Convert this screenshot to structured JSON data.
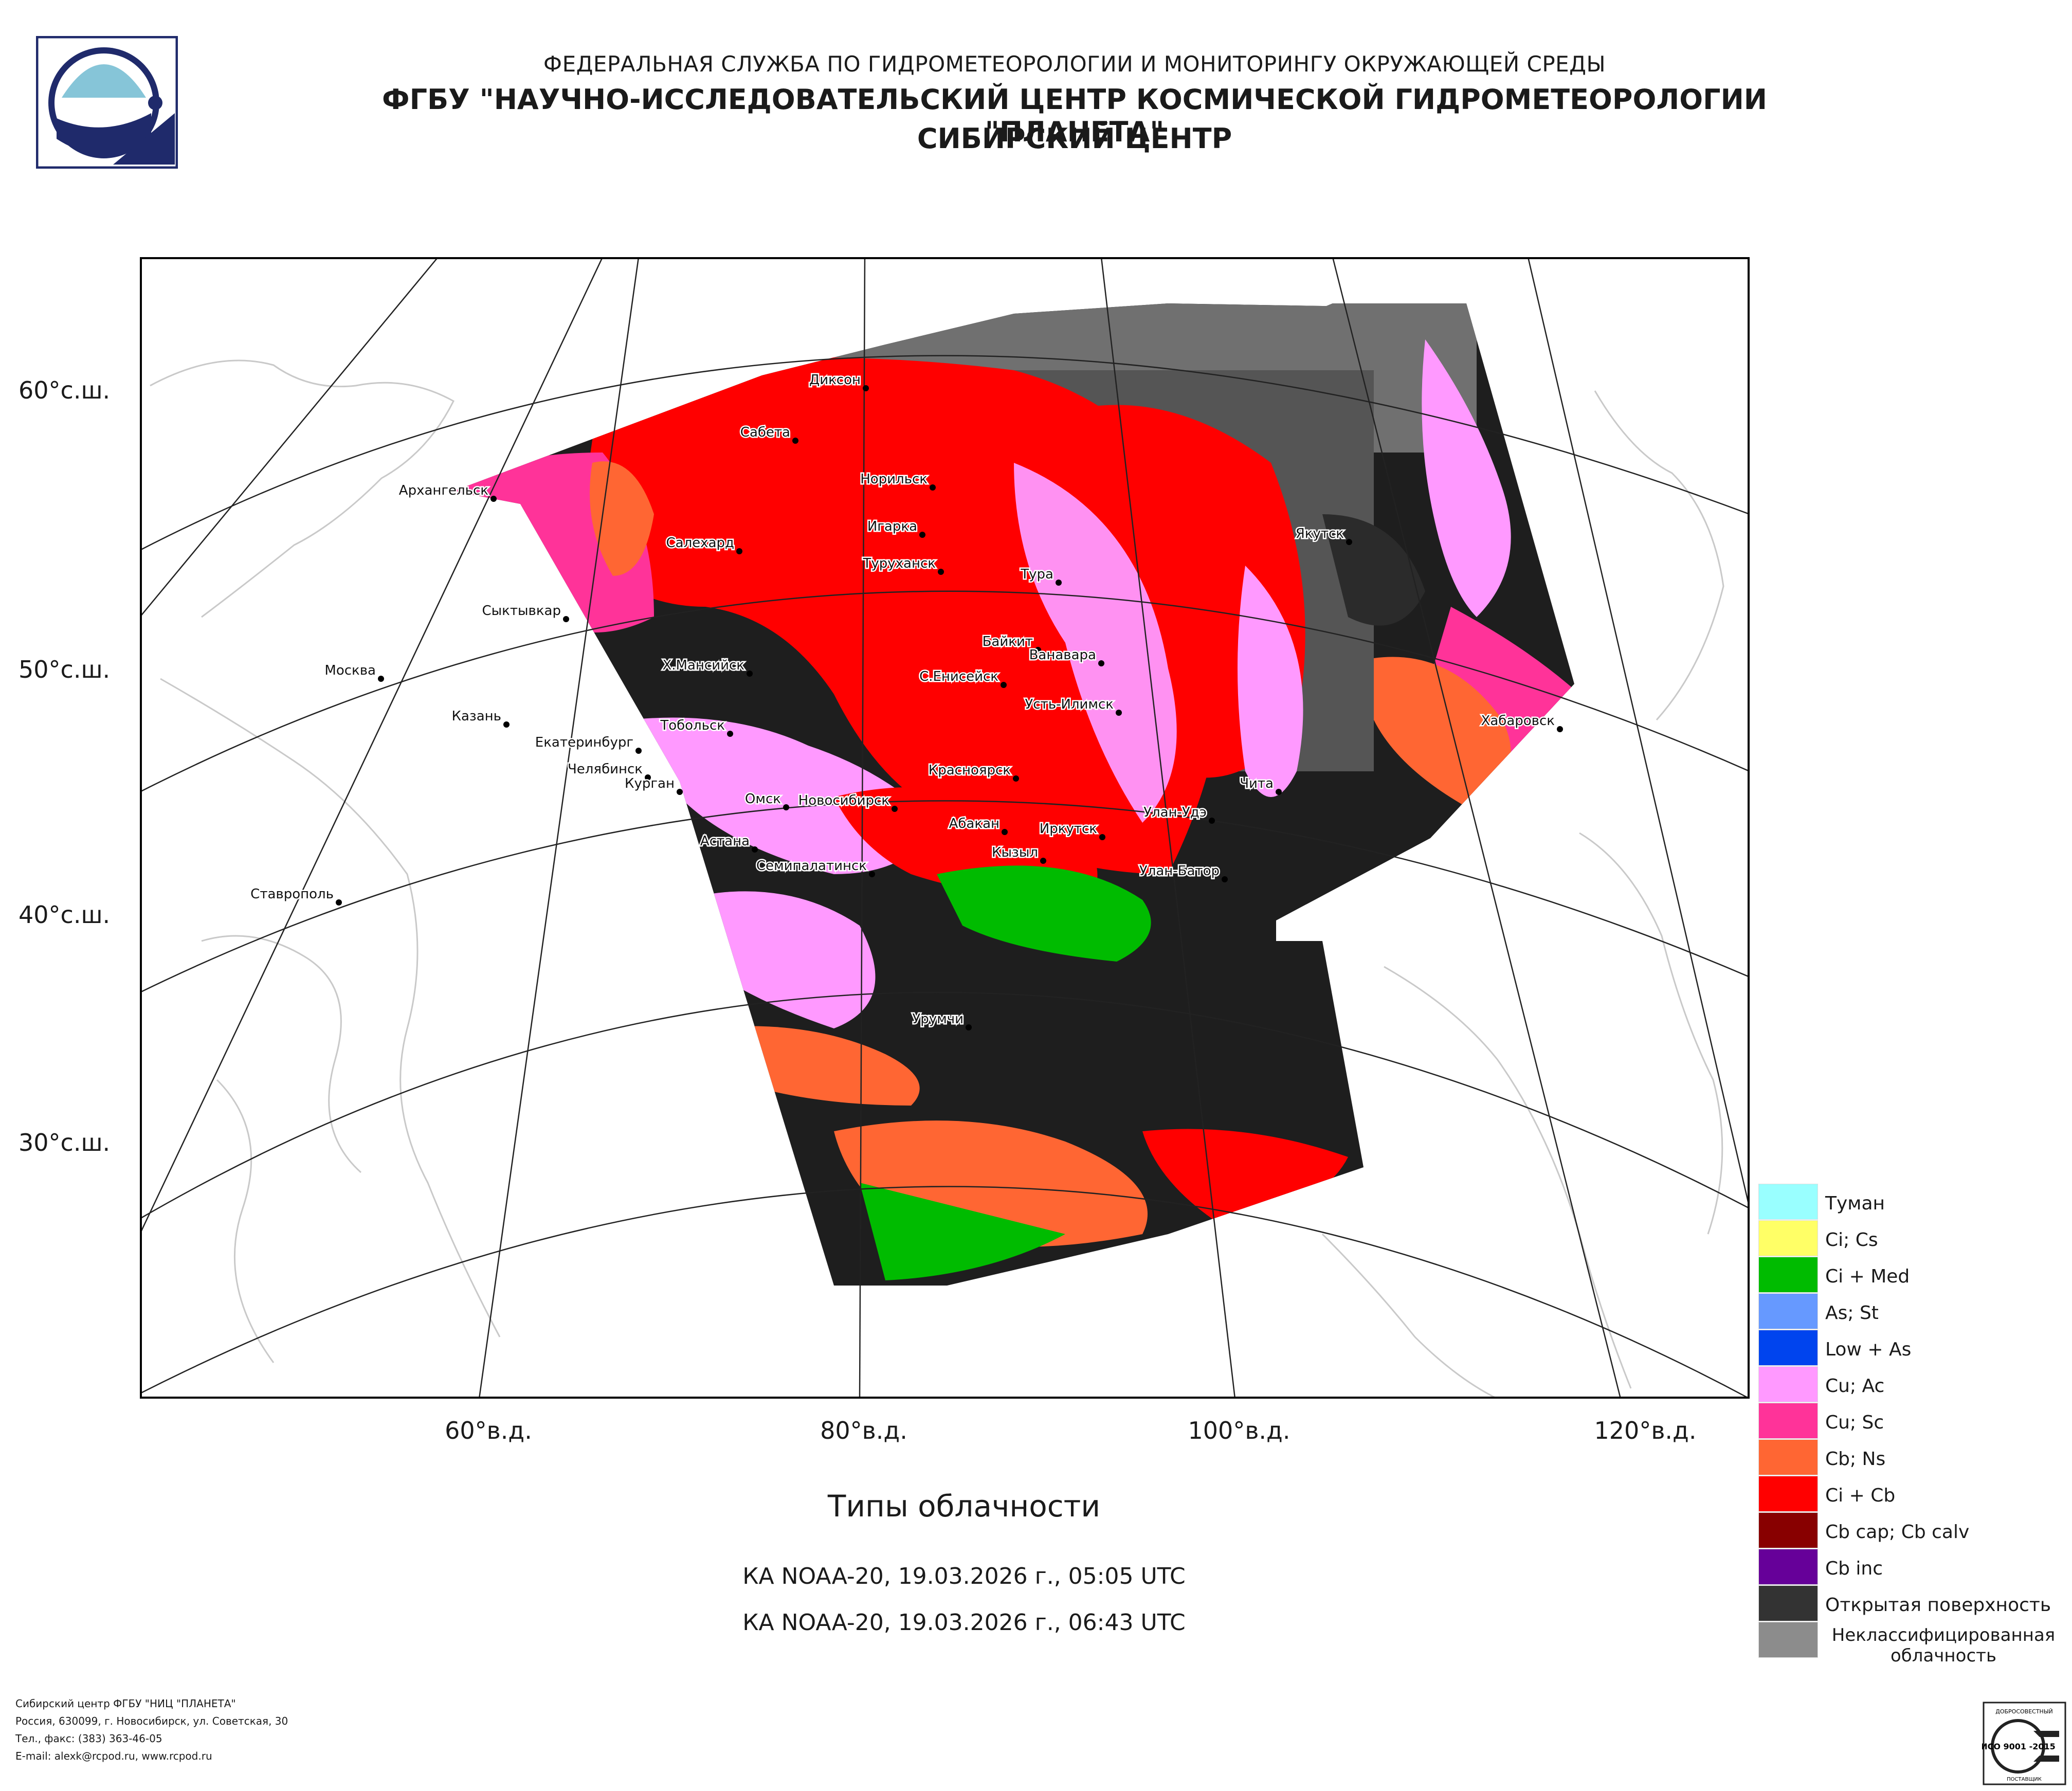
{
  "header": {
    "line1": "ФЕДЕРАЛЬНАЯ СЛУЖБА ПО ГИДРОМЕТЕОРОЛОГИИ И МОНИТОРИНГУ ОКРУЖАЮЩЕЙ СРЕДЫ",
    "line2": "ФГБУ \"НАУЧНО-ИССЛЕДОВАТЕЛЬСКИЙ ЦЕНТР КОСМИЧЕСКОЙ ГИДРОМЕТЕОРОЛОГИИ \"ПЛАНЕТА\"",
    "line3": "СИБИРСКИЙ ЦЕНТР"
  },
  "map": {
    "lat_labels": [
      "60°с.ш.",
      "50°с.ш.",
      "40°с.ш.",
      "30°с.ш."
    ],
    "lon_labels": [
      "60°в.д.",
      "80°в.д.",
      "100°в.д.",
      "120°в.д."
    ],
    "cities": [
      "Диксон",
      "Сабета",
      "Норильск",
      "Игарка",
      "Туруханск",
      "Салехард",
      "Архангельск",
      "Сыктывкар",
      "Москва",
      "Казань",
      "Екатеринбург",
      "Челябинск",
      "Курган",
      "Тобольск",
      "Х.Мансийск",
      "Омск",
      "Новосибирск",
      "Астана",
      "Семипалатинск",
      "Урумчи",
      "Красноярск",
      "Абакан",
      "Кызыл",
      "Иркутск",
      "Улан-Удэ",
      "Улан-Батор",
      "Чита",
      "Тура",
      "Байкит",
      "Ванавара",
      "С.Енисейск",
      "Усть-Илимск",
      "Якутск",
      "Хабаровск",
      "Ставрополь"
    ]
  },
  "caption": "Типы облачности",
  "passes": [
    "КА NOAA-20, 19.03.2026 г., 05:05 UTC",
    "КА NOAA-20, 19.03.2026 г., 06:43 UTC"
  ],
  "legend": [
    {
      "label": "Туман",
      "color": "#99ffff"
    },
    {
      "label": "Ci; Cs",
      "color": "#ffff66"
    },
    {
      "label": "Ci + Med",
      "color": "#00bb00"
    },
    {
      "label": "As; St",
      "color": "#6699ff"
    },
    {
      "label": "Low + As",
      "color": "#0044ee"
    },
    {
      "label": "Cu; Ac",
      "color": "#ff99ff"
    },
    {
      "label": "Cu; Sc",
      "color": "#ff3399"
    },
    {
      "label": "Cb; Ns",
      "color": "#ff6633"
    },
    {
      "label": "Ci + Cb",
      "color": "#ff0000"
    },
    {
      "label": "Cb cap; Cb calv",
      "color": "#880000"
    },
    {
      "label": "Cb inc",
      "color": "#660099"
    },
    {
      "label": "Открытая поверхность",
      "color": "#333333"
    },
    {
      "label": "Неклассифицированная облачность",
      "color": "#8c8c8c"
    }
  ],
  "footer": {
    "line1": "Сибирский центр ФГБУ \"НИЦ \"ПЛАНЕТА\"",
    "line2": "Россия, 630099, г. Новосибирск, ул. Советская, 30",
    "line3": "Тел., факс: (383) 363-46-05",
    "line4": "E-mail: alexk@rcpod.ru, www.rcpod.ru"
  },
  "iso_badge": {
    "top": "ДОБРОСОВЕСТНЫЙ",
    "main": "ИСО 9001 -2015",
    "bottom": "ПОСТАВЩИК"
  }
}
